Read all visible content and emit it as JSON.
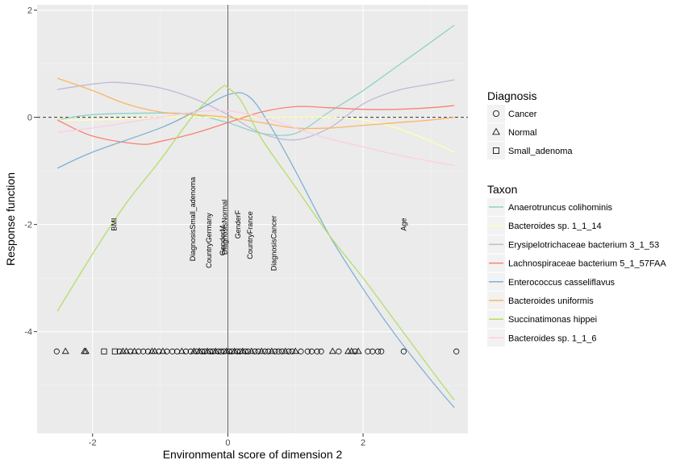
{
  "chart_data": {
    "type": "line",
    "xlabel": "Environmental score of dimension 2",
    "ylabel": "Response function",
    "xlim": [
      -2.82,
      3.55
    ],
    "ylim": [
      -5.9,
      2.1
    ],
    "x_ticks": [
      -2,
      0,
      2
    ],
    "x_tick_labels": [
      "-2",
      "0",
      "2"
    ],
    "y_ticks": [
      -4,
      -2,
      0,
      2
    ],
    "y_tick_labels": [
      "-4",
      "-2",
      "0",
      "2"
    ],
    "grid": true,
    "reference_lines": {
      "horizontal_dashed_y": 0,
      "vertical_solid_x": 0
    },
    "series": [
      {
        "name": "Anaerotruncus colihominis",
        "color": "#8dd3c7",
        "x": [
          -2.52,
          -2,
          -1,
          -0.5,
          0,
          0.5,
          1,
          1.5,
          2,
          2.5,
          3,
          3.35
        ],
        "y": [
          -0.05,
          0.05,
          0.08,
          0.05,
          -0.1,
          -0.3,
          -0.3,
          0.1,
          0.5,
          0.95,
          1.4,
          1.72
        ]
      },
      {
        "name": "Bacteroides sp. 1_1_14",
        "color": "#ffffb3",
        "x": [
          -2.52,
          -2,
          -1,
          0,
          0.5,
          1,
          1.5,
          2,
          2.5,
          3,
          3.35
        ],
        "y": [
          -0.05,
          -0.05,
          0.0,
          0.0,
          0.0,
          0.0,
          0.0,
          -0.05,
          -0.2,
          -0.45,
          -0.65
        ]
      },
      {
        "name": "Erysipelotrichaceae bacterium 3_1_53",
        "color": "#bebada",
        "x": [
          -2.52,
          -2,
          -1.6,
          -1,
          -0.5,
          0,
          0.5,
          1,
          1.5,
          2,
          2.5,
          3,
          3.35
        ],
        "y": [
          0.52,
          0.62,
          0.65,
          0.55,
          0.35,
          0.05,
          -0.3,
          -0.42,
          -0.2,
          0.25,
          0.5,
          0.62,
          0.7
        ]
      },
      {
        "name": "Lachnospiraceae bacterium 5_1_57FAA",
        "color": "#fb8072",
        "x": [
          -2.52,
          -2,
          -1.3,
          -1,
          -0.5,
          0,
          0.5,
          1,
          1.5,
          2,
          2.5,
          3,
          3.35
        ],
        "y": [
          -0.05,
          -0.35,
          -0.5,
          -0.45,
          -0.3,
          -0.1,
          0.1,
          0.2,
          0.18,
          0.15,
          0.15,
          0.18,
          0.22
        ]
      },
      {
        "name": "Enterococcus casseliflavus",
        "color": "#80b1d3",
        "x": [
          -2.52,
          -2,
          -1,
          -0.5,
          0,
          0.3,
          0.6,
          1,
          1.5,
          2,
          2.5,
          3,
          3.35
        ],
        "y": [
          -0.95,
          -0.65,
          -0.2,
          0.1,
          0.42,
          0.4,
          -0.1,
          -1.0,
          -2.2,
          -3.2,
          -4.1,
          -4.9,
          -5.42
        ]
      },
      {
        "name": "Bacteroides uniformis",
        "color": "#fdb462",
        "x": [
          -2.52,
          -2,
          -1.5,
          -1,
          -0.5,
          0,
          0.5,
          1,
          1.5,
          2,
          2.5,
          3,
          3.35
        ],
        "y": [
          0.73,
          0.5,
          0.25,
          0.1,
          0.05,
          0.0,
          -0.1,
          -0.2,
          -0.2,
          -0.15,
          -0.1,
          -0.05,
          0.0
        ]
      },
      {
        "name": "Succinatimonas hippei",
        "color": "#b3de69",
        "x": [
          -2.52,
          -2,
          -1.5,
          -1,
          -0.5,
          -0.1,
          0,
          0.2,
          0.5,
          1,
          1.5,
          2,
          2.5,
          3,
          3.35
        ],
        "y": [
          -3.62,
          -2.55,
          -1.6,
          -0.8,
          0.05,
          0.55,
          0.55,
          0.3,
          -0.4,
          -1.3,
          -2.2,
          -3.0,
          -3.85,
          -4.7,
          -5.28
        ]
      },
      {
        "name": "Bacteroides sp. 1_1_6",
        "color": "#fccde5",
        "x": [
          -2.52,
          -2,
          -1.5,
          -1,
          -0.5,
          0,
          0.5,
          1,
          1.5,
          2,
          2.5,
          3,
          3.35
        ],
        "y": [
          -0.28,
          -0.2,
          -0.1,
          0.0,
          0.1,
          0.12,
          0.0,
          -0.2,
          -0.4,
          -0.55,
          -0.7,
          -0.82,
          -0.9
        ]
      }
    ],
    "annotations": [
      {
        "text": "BMI",
        "x": -1.68,
        "y": -2.0
      },
      {
        "text": "DiagnosisSmall_adenoma",
        "x": -0.52,
        "y": -1.9
      },
      {
        "text": "CountryGermany",
        "x": -0.28,
        "y": -2.3
      },
      {
        "text": "GenderM",
        "x": -0.08,
        "y": -2.3
      },
      {
        "text": "DiagnosisNormal",
        "x": -0.05,
        "y": -2.05
      },
      {
        "text": "GenderF",
        "x": 0.15,
        "y": -2.0
      },
      {
        "text": "CountryFrance",
        "x": 0.33,
        "y": -2.2
      },
      {
        "text": "DiagnosisCancer",
        "x": 0.68,
        "y": -2.35
      },
      {
        "text": "Age",
        "x": 2.6,
        "y": -2.0
      }
    ],
    "rug": {
      "y": -4.37,
      "points": [
        {
          "x": -2.53,
          "shape": "circle"
        },
        {
          "x": -2.4,
          "shape": "triangle"
        },
        {
          "x": -2.12,
          "shape": "triangle"
        },
        {
          "x": -2.1,
          "shape": "triangle"
        },
        {
          "x": -1.83,
          "shape": "square"
        },
        {
          "x": -1.67,
          "shape": "square"
        },
        {
          "x": -1.6,
          "shape": "circle"
        },
        {
          "x": -1.55,
          "shape": "triangle"
        },
        {
          "x": -1.5,
          "shape": "triangle"
        },
        {
          "x": -1.44,
          "shape": "circle"
        },
        {
          "x": -1.38,
          "shape": "triangle"
        },
        {
          "x": -1.32,
          "shape": "circle"
        },
        {
          "x": -1.25,
          "shape": "circle"
        },
        {
          "x": -1.18,
          "shape": "circle"
        },
        {
          "x": -1.12,
          "shape": "triangle"
        },
        {
          "x": -1.08,
          "shape": "triangle"
        },
        {
          "x": -1.02,
          "shape": "circle"
        },
        {
          "x": -0.96,
          "shape": "triangle"
        },
        {
          "x": -0.9,
          "shape": "circle"
        },
        {
          "x": -0.82,
          "shape": "circle"
        },
        {
          "x": -0.75,
          "shape": "circle"
        },
        {
          "x": -0.68,
          "shape": "triangle"
        },
        {
          "x": -0.62,
          "shape": "circle"
        },
        {
          "x": -0.55,
          "shape": "circle"
        },
        {
          "x": -0.5,
          "shape": "triangle"
        },
        {
          "x": -0.46,
          "shape": "circle"
        },
        {
          "x": -0.42,
          "shape": "triangle"
        },
        {
          "x": -0.38,
          "shape": "circle"
        },
        {
          "x": -0.34,
          "shape": "circle"
        },
        {
          "x": -0.3,
          "shape": "triangle"
        },
        {
          "x": -0.26,
          "shape": "circle"
        },
        {
          "x": -0.22,
          "shape": "circle"
        },
        {
          "x": -0.18,
          "shape": "triangle"
        },
        {
          "x": -0.14,
          "shape": "circle"
        },
        {
          "x": -0.1,
          "shape": "circle"
        },
        {
          "x": -0.06,
          "shape": "circle"
        },
        {
          "x": -0.02,
          "shape": "triangle"
        },
        {
          "x": 0.02,
          "shape": "circle"
        },
        {
          "x": 0.06,
          "shape": "circle"
        },
        {
          "x": 0.1,
          "shape": "triangle"
        },
        {
          "x": 0.14,
          "shape": "circle"
        },
        {
          "x": 0.18,
          "shape": "circle"
        },
        {
          "x": 0.22,
          "shape": "triangle"
        },
        {
          "x": 0.26,
          "shape": "circle"
        },
        {
          "x": 0.3,
          "shape": "circle"
        },
        {
          "x": 0.35,
          "shape": "triangle"
        },
        {
          "x": 0.4,
          "shape": "circle"
        },
        {
          "x": 0.45,
          "shape": "circle"
        },
        {
          "x": 0.5,
          "shape": "triangle"
        },
        {
          "x": 0.55,
          "shape": "circle"
        },
        {
          "x": 0.6,
          "shape": "circle"
        },
        {
          "x": 0.65,
          "shape": "triangle"
        },
        {
          "x": 0.7,
          "shape": "circle"
        },
        {
          "x": 0.75,
          "shape": "circle"
        },
        {
          "x": 0.8,
          "shape": "circle"
        },
        {
          "x": 0.85,
          "shape": "triangle"
        },
        {
          "x": 0.9,
          "shape": "circle"
        },
        {
          "x": 0.95,
          "shape": "circle"
        },
        {
          "x": 1.0,
          "shape": "triangle"
        },
        {
          "x": 1.08,
          "shape": "circle"
        },
        {
          "x": 1.18,
          "shape": "circle"
        },
        {
          "x": 1.24,
          "shape": "circle"
        },
        {
          "x": 1.32,
          "shape": "circle"
        },
        {
          "x": 1.38,
          "shape": "circle"
        },
        {
          "x": 1.55,
          "shape": "triangle"
        },
        {
          "x": 1.64,
          "shape": "circle"
        },
        {
          "x": 1.78,
          "shape": "triangle"
        },
        {
          "x": 1.83,
          "shape": "triangle"
        },
        {
          "x": 1.88,
          "shape": "circle"
        },
        {
          "x": 1.93,
          "shape": "triangle"
        },
        {
          "x": 2.07,
          "shape": "circle"
        },
        {
          "x": 2.14,
          "shape": "circle"
        },
        {
          "x": 2.22,
          "shape": "circle"
        },
        {
          "x": 2.27,
          "shape": "circle"
        },
        {
          "x": 2.6,
          "shape": "circle"
        },
        {
          "x": 3.38,
          "shape": "circle"
        }
      ]
    },
    "legends": [
      {
        "title": "Diagnosis",
        "type": "shape",
        "entries": [
          {
            "label": "Cancer",
            "shape": "circle"
          },
          {
            "label": "Normal",
            "shape": "triangle"
          },
          {
            "label": "Small_adenoma",
            "shape": "square"
          }
        ]
      },
      {
        "title": "Taxon",
        "type": "color",
        "entries": [
          {
            "label": "Anaerotruncus colihominis",
            "color": "#8dd3c7"
          },
          {
            "label": "Bacteroides sp. 1_1_14",
            "color": "#ffffb3"
          },
          {
            "label": "Erysipelotrichaceae bacterium 3_1_53",
            "color": "#bebada"
          },
          {
            "label": "Lachnospiraceae bacterium 5_1_57FAA",
            "color": "#fb8072"
          },
          {
            "label": "Enterococcus casseliflavus",
            "color": "#80b1d3"
          },
          {
            "label": "Bacteroides uniformis",
            "color": "#fdb462"
          },
          {
            "label": "Succinatimonas hippei",
            "color": "#b3de69"
          },
          {
            "label": "Bacteroides sp. 1_1_6",
            "color": "#fccde5"
          }
        ]
      }
    ],
    "legend_position": "right",
    "colors": {
      "panel_background": "#ebebeb",
      "grid_major": "#ffffff",
      "grid_minor": "#f5f5f5",
      "ref_line": "#333333",
      "rug_stroke": "#000000"
    }
  }
}
